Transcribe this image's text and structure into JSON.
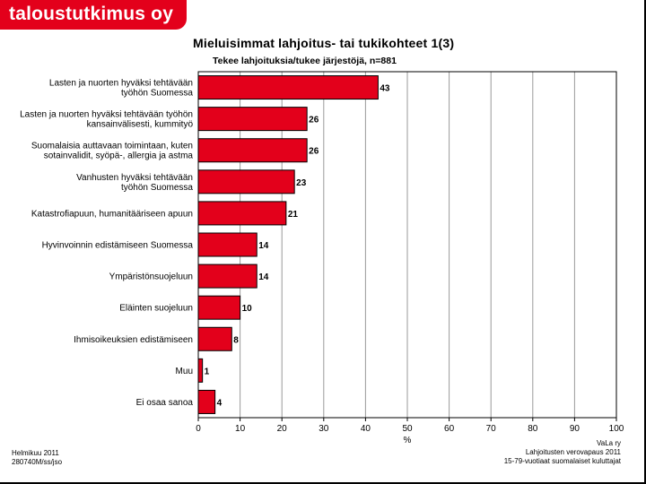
{
  "logo": {
    "text": "taloustutkimus oy",
    "color": "#e3001b"
  },
  "chart_data": {
    "type": "bar",
    "orientation": "horizontal",
    "title": "Mieluisimmat lahjoitus- tai tukikohteet 1(3)",
    "subtitle": "Tekee lahjoituksia/tukee järjestöjä, n=881",
    "categories": [
      [
        "Lasten ja nuorten hyväksi tehtävään",
        "työhön Suomessa"
      ],
      [
        "Lasten ja nuorten hyväksi tehtävään työhön",
        "kansainvälisesti, kummityö"
      ],
      [
        "Suomalaisia auttavaan toimintaan, kuten",
        "sotainvalidit, syöpä-, allergia ja astma"
      ],
      [
        "Vanhusten hyväksi tehtävään",
        "työhön Suomessa"
      ],
      [
        "Katastrofiapuun, humanitääriseen apuun"
      ],
      [
        "Hyvinvoinnin edistämiseen Suomessa"
      ],
      [
        "Ympäristönsuojeluun"
      ],
      [
        "Eläinten suojeluun"
      ],
      [
        "Ihmisoikeuksien edistämiseen"
      ],
      [
        "Muu"
      ],
      [
        "Ei osaa sanoa"
      ]
    ],
    "values": [
      43,
      26,
      26,
      23,
      21,
      14,
      14,
      10,
      8,
      1,
      4
    ],
    "xlabel": "%",
    "xlim": [
      0,
      100
    ],
    "xticks": [
      0,
      10,
      20,
      30,
      40,
      50,
      60,
      70,
      80,
      90,
      100
    ],
    "bar_color": "#e3001b",
    "grid": true
  },
  "footer": {
    "left_line1": "Helmikuu 2011",
    "left_line2": "280740M/ss/jso",
    "right_line1": "VaLa ry",
    "right_line2": "Lahjoitusten verovapaus 2011",
    "right_line3": "15-79-vuotiaat suomalaiset kuluttajat"
  }
}
